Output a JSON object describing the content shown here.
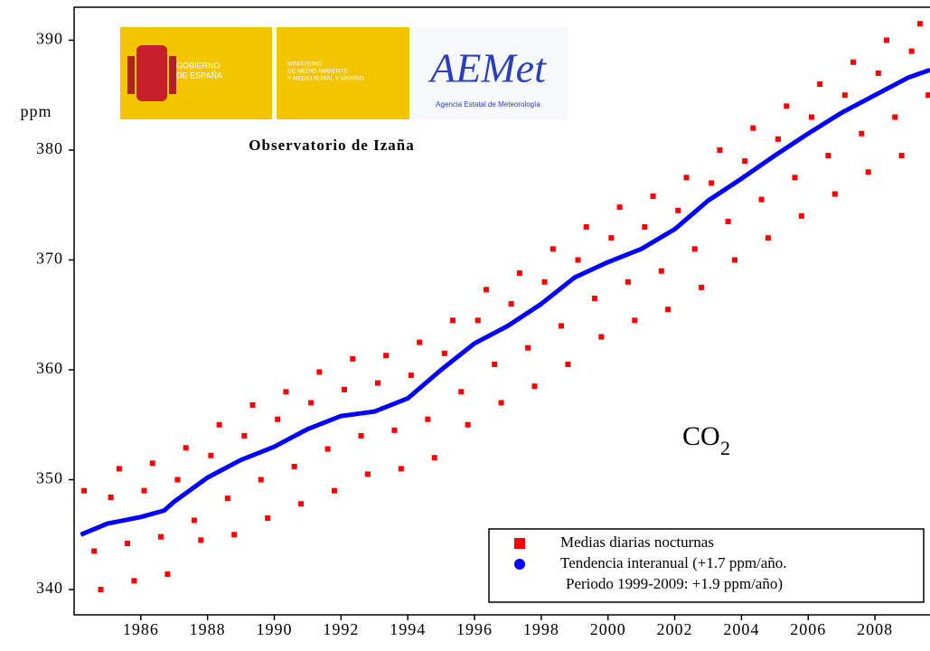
{
  "chart_data": {
    "type": "scatter",
    "y_label": "ppm",
    "annotations": {
      "observatory": "Observatorio de Izaña",
      "gov_line1": "GOBIERNO",
      "gov_line2": "DE ESPAÑA",
      "min_line1": "MINISTERIO",
      "min_line2": "DE MEDIO AMBIENTE",
      "min_line3": "Y MEDIO RURAL Y MARINO",
      "aemet": "AEMet",
      "aemet_sub": "Agencia Estatal de Meteorología",
      "gas": "CO",
      "gas_sub": "2",
      "legend_note": "Periodo 1999-2009: +1.9 ppm/año)"
    },
    "xlim": [
      1984.0,
      2009.65
    ],
    "ylim": [
      337.7,
      393.0
    ],
    "xticks": [
      1986,
      1988,
      1990,
      1992,
      1994,
      1996,
      1998,
      2000,
      2002,
      2004,
      2006,
      2008
    ],
    "yticks": [
      340,
      350,
      360,
      370,
      380,
      390
    ],
    "series": [
      {
        "name": "Medias diarias nocturnas",
        "color": "#ff0000",
        "marker": "square",
        "x": [
          1984.3,
          1984.6,
          1984.8,
          1985.1,
          1985.35,
          1985.6,
          1985.8,
          1986.1,
          1986.35,
          1986.6,
          1986.8,
          1987.1,
          1987.35,
          1987.6,
          1987.8,
          1988.1,
          1988.35,
          1988.6,
          1988.8,
          1989.1,
          1989.35,
          1989.6,
          1989.8,
          1990.1,
          1990.35,
          1990.6,
          1990.8,
          1991.1,
          1991.35,
          1991.6,
          1991.8,
          1992.1,
          1992.35,
          1992.6,
          1992.8,
          1993.1,
          1993.35,
          1993.6,
          1993.8,
          1994.1,
          1994.35,
          1994.6,
          1994.8,
          1995.1,
          1995.35,
          1995.6,
          1995.8,
          1996.1,
          1996.35,
          1996.6,
          1996.8,
          1997.1,
          1997.35,
          1997.6,
          1997.8,
          1998.1,
          1998.35,
          1998.6,
          1998.8,
          1999.1,
          1999.35,
          1999.6,
          1999.8,
          2000.1,
          2000.35,
          2000.6,
          2000.8,
          2001.1,
          2001.35,
          2001.6,
          2001.8,
          2002.1,
          2002.35,
          2002.6,
          2002.8,
          2003.1,
          2003.35,
          2003.6,
          2003.8,
          2004.1,
          2004.35,
          2004.6,
          2004.8,
          2005.1,
          2005.35,
          2005.6,
          2005.8,
          2006.1,
          2006.35,
          2006.6,
          2006.8,
          2007.1,
          2007.35,
          2007.6,
          2007.8,
          2008.1,
          2008.35,
          2008.6,
          2008.8,
          2009.1,
          2009.35,
          2009.6
        ],
        "values": [
          349.0,
          343.5,
          340.0,
          348.4,
          351.0,
          344.2,
          340.8,
          349.0,
          351.5,
          344.8,
          341.4,
          350.0,
          352.9,
          346.3,
          344.5,
          352.2,
          355.0,
          348.3,
          345.0,
          354.0,
          356.8,
          350.0,
          346.5,
          355.5,
          358.0,
          351.2,
          347.8,
          357.0,
          359.8,
          352.8,
          349.0,
          358.2,
          361.0,
          354.0,
          350.5,
          358.8,
          361.3,
          354.5,
          351.0,
          359.5,
          362.5,
          355.5,
          352.0,
          361.5,
          364.5,
          358.0,
          355.0,
          364.5,
          367.3,
          360.5,
          357.0,
          366.0,
          368.8,
          362.0,
          358.5,
          368.0,
          371.0,
          364.0,
          360.5,
          370.0,
          373.0,
          366.5,
          363.0,
          372.0,
          374.8,
          368.0,
          364.5,
          373.0,
          375.8,
          369.0,
          365.5,
          374.5,
          377.5,
          371.0,
          367.5,
          377.0,
          380.0,
          373.5,
          370.0,
          379.0,
          382.0,
          375.5,
          372.0,
          381.0,
          384.0,
          377.5,
          374.0,
          383.0,
          386.0,
          379.5,
          376.0,
          385.0,
          388.0,
          381.5,
          378.0,
          387.0,
          390.0,
          383.0,
          379.5,
          389.0,
          391.5,
          385.0
        ]
      },
      {
        "name": "Tendencia interanual (+1.7 ppm/año.",
        "color": "#0000ff",
        "marker": "line",
        "x": [
          1984.2,
          1985,
          1986,
          1986.7,
          1987,
          1988,
          1989,
          1990,
          1991,
          1992,
          1993,
          1994,
          1995,
          1996,
          1997,
          1998,
          1999,
          2000,
          2001,
          2002,
          2003,
          2004,
          2005,
          2006,
          2007,
          2008,
          2009,
          2009.65
        ],
        "values": [
          345.0,
          346.0,
          346.6,
          347.2,
          348.0,
          350.2,
          351.8,
          353.0,
          354.6,
          355.8,
          356.2,
          357.4,
          360.0,
          362.4,
          364.0,
          366.0,
          368.4,
          369.8,
          371.0,
          372.8,
          375.4,
          377.4,
          379.5,
          381.5,
          383.4,
          385.0,
          386.6,
          387.3
        ]
      }
    ]
  }
}
